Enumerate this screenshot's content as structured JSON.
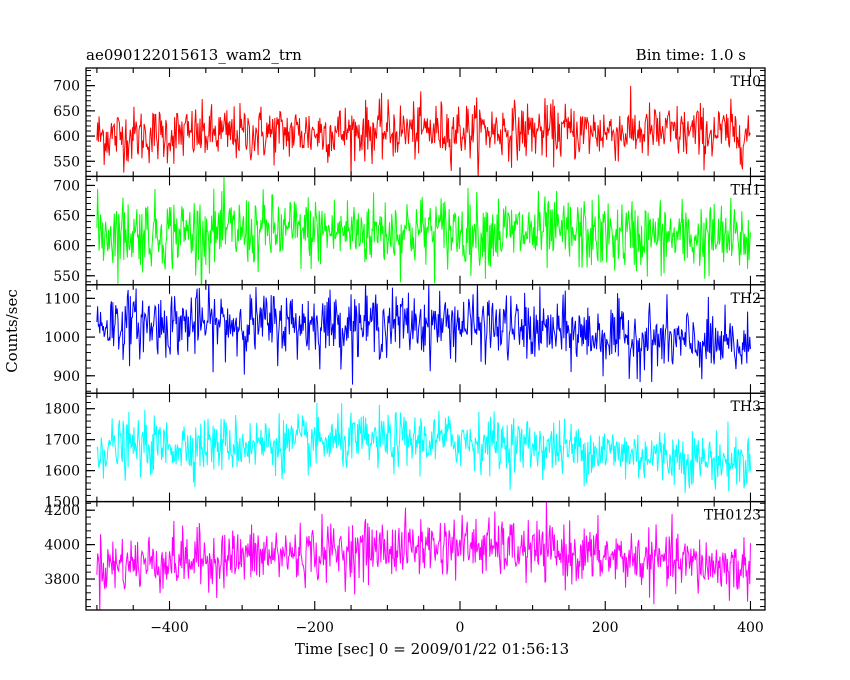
{
  "chart_data": {
    "type": "line",
    "title": "ae090122015613_wam2_trn",
    "subtitle": "Bin time: 1.0 s",
    "ylabel": "Counts/sec",
    "xlabel": "Time [sec] 0 = 2009/01/22 01:56:13",
    "xlim": [
      -515,
      420
    ],
    "x_ticks": [
      -400,
      -200,
      0,
      200,
      400
    ],
    "panels": [
      {
        "name": "TH0",
        "color": "#ff0000",
        "ylim": [
          520,
          735
        ],
        "y_ticks": [
          550,
          600,
          650,
          700
        ],
        "mean_start": 600,
        "mean_mid": 612,
        "mean_end": 605,
        "noise": 28
      },
      {
        "name": "TH1",
        "color": "#00ff00",
        "ylim": [
          535,
          715
        ],
        "y_ticks": [
          550,
          600,
          650,
          700
        ],
        "mean_start": 622,
        "mean_mid": 625,
        "mean_end": 610,
        "noise": 30
      },
      {
        "name": "TH2",
        "color": "#0000ff",
        "ylim": [
          855,
          1135
        ],
        "y_ticks": [
          900,
          1000,
          1100
        ],
        "mean_start": 1035,
        "mean_mid": 1035,
        "mean_end": 970,
        "noise": 42
      },
      {
        "name": "TH3",
        "color": "#00ffff",
        "ylim": [
          1500,
          1850
        ],
        "y_ticks": [
          1500,
          1600,
          1700,
          1800
        ],
        "mean_start": 1675,
        "mean_mid": 1700,
        "mean_end": 1625,
        "noise": 45
      },
      {
        "name": "TH0123",
        "color": "#ff00ff",
        "ylim": [
          3620,
          4250
        ],
        "y_ticks": [
          3800,
          4000,
          4200
        ],
        "mean_start": 3880,
        "mean_mid": 4000,
        "mean_end": 3860,
        "noise": 85
      }
    ]
  }
}
